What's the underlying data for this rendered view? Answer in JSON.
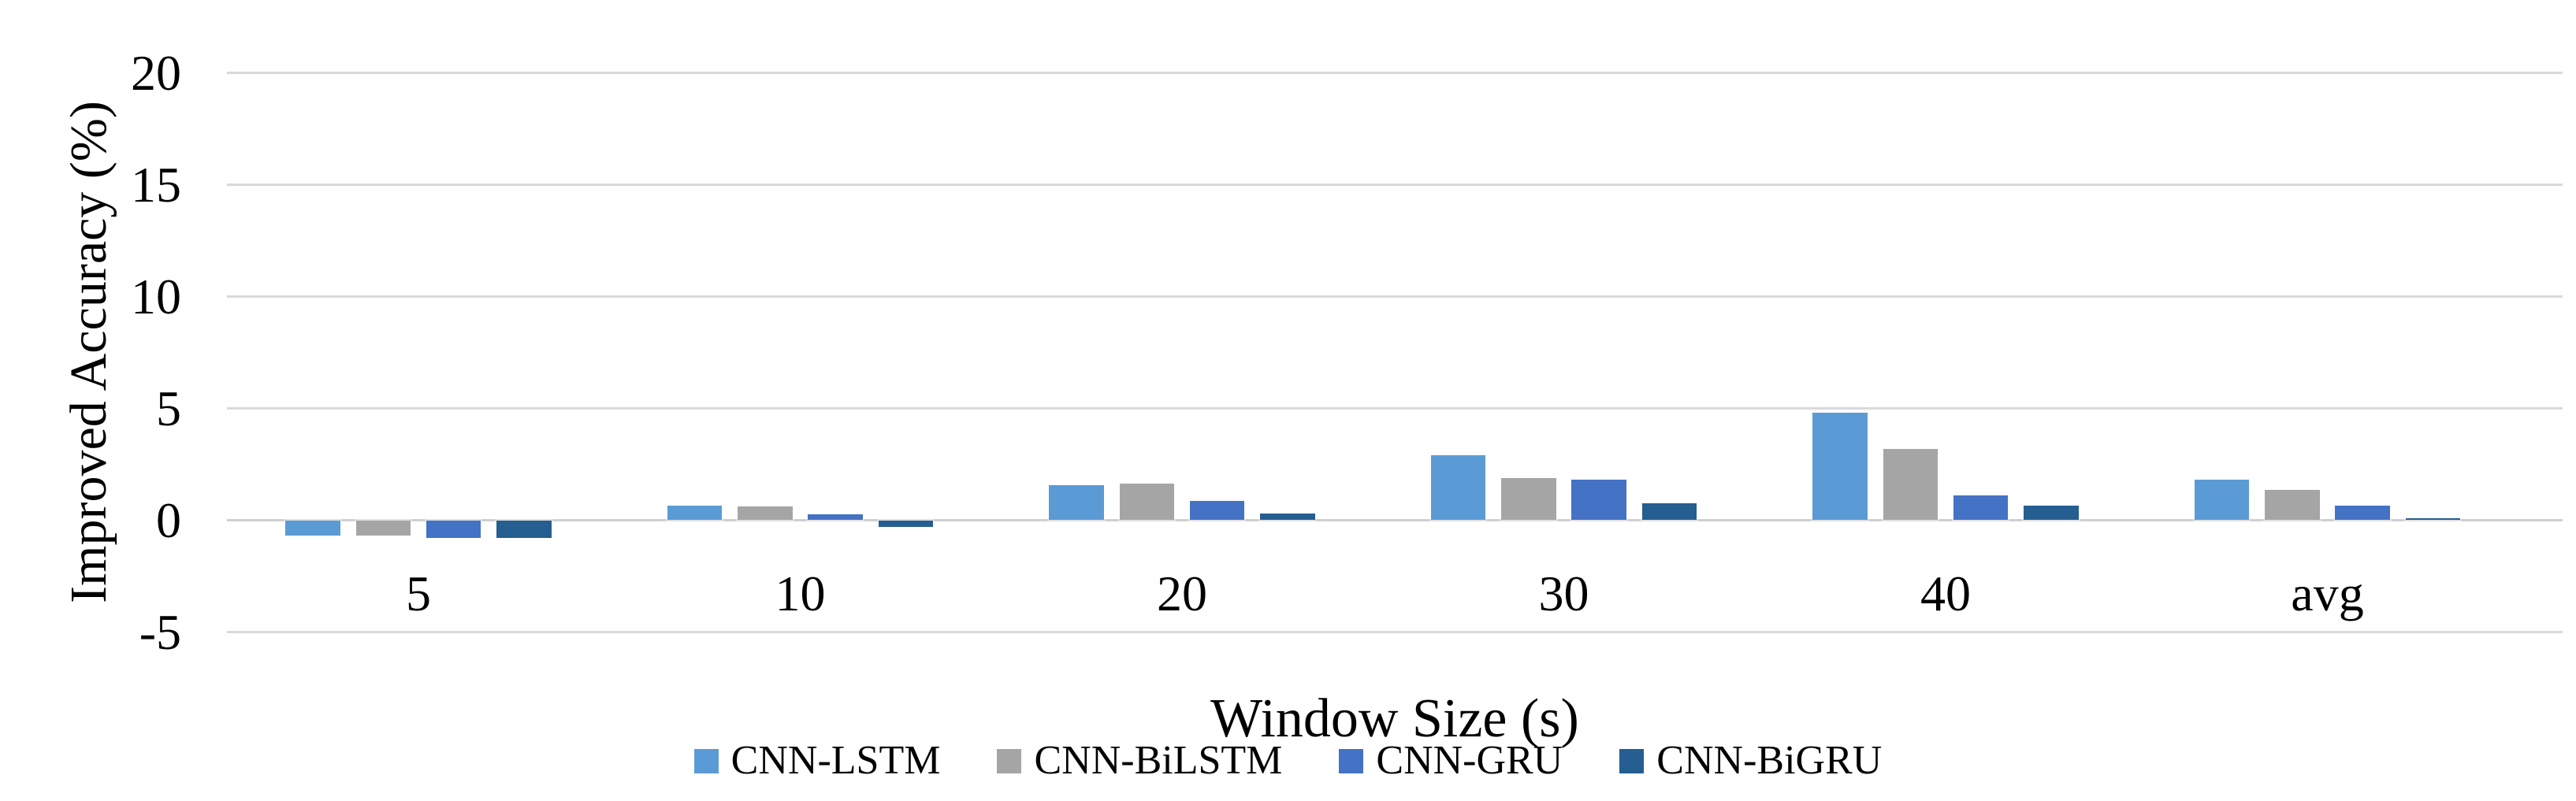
{
  "chart_data": {
    "type": "bar",
    "title": "",
    "xlabel": "Window Size (s)",
    "ylabel": "Improved Accuracy (%)",
    "categories": [
      "5",
      "10",
      "20",
      "30",
      "40",
      "avg"
    ],
    "series": [
      {
        "name": "CNN-LSTM",
        "color": "#5B9BD5",
        "values": [
          -0.7,
          0.65,
          1.55,
          2.9,
          4.8,
          1.8
        ]
      },
      {
        "name": "CNN-BiLSTM",
        "color": "#A5A5A5",
        "values": [
          -0.7,
          0.6,
          1.65,
          1.9,
          3.2,
          1.35
        ]
      },
      {
        "name": "CNN-GRU",
        "color": "#4472C4",
        "values": [
          -0.8,
          0.25,
          0.85,
          1.8,
          1.1,
          0.65
        ]
      },
      {
        "name": "CNN-BiGRU",
        "color": "#255E91",
        "values": [
          -0.8,
          -0.3,
          0.3,
          0.75,
          0.65,
          0.1
        ]
      }
    ],
    "yticks": [
      20,
      15,
      10,
      5,
      0,
      -5
    ],
    "ylim": [
      -5,
      20
    ],
    "grid": true,
    "legend_position": "bottom",
    "gridline_color": "#D9D9D9",
    "axis_line_color": "#CFCFCF",
    "background": "#FFFFFF"
  }
}
